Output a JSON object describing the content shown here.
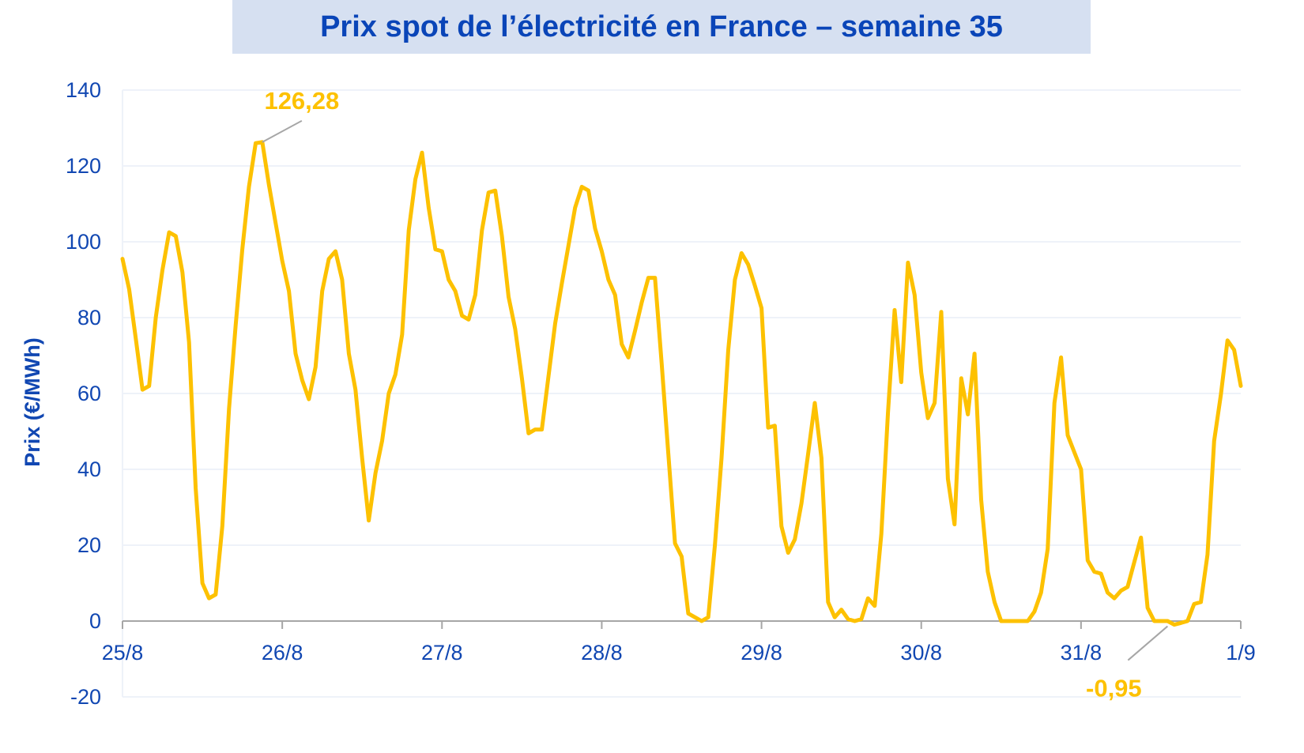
{
  "colors": {
    "title": "#0a45b8",
    "title_bg": "#d6e0f1",
    "line": "#fdc100",
    "axis_text": "#1147b2",
    "grid": "#eef2f9",
    "axis": "#a6a6a6",
    "leader": "#a6a6a6"
  },
  "chart_data": {
    "type": "line",
    "title": "Prix spot de l’électricité en France – semaine 35",
    "xlabel": "",
    "ylabel": "Prix (€/MWh)",
    "ylim": [
      -20,
      140
    ],
    "yticks": [
      -20,
      0,
      20,
      40,
      60,
      80,
      100,
      120,
      140
    ],
    "ytick_labels": [
      "-20",
      "0",
      "20",
      "40",
      "60",
      "80",
      "100",
      "120",
      "140"
    ],
    "xlim": [
      0,
      168
    ],
    "x_unit": "hours since 25/8 00:00",
    "xticks": [
      0,
      24,
      48,
      72,
      96,
      120,
      144,
      168
    ],
    "xtick_labels": [
      "25/8",
      "26/8",
      "27/8",
      "28/8",
      "29/8",
      "30/8",
      "31/8",
      "1/9"
    ],
    "grid": true,
    "series": [
      {
        "name": "Prix spot",
        "values": [
          95.5,
          87.5,
          74.5,
          61,
          62,
          80,
          92.5,
          102.5,
          101.5,
          92,
          73.5,
          35,
          10,
          6,
          7,
          25,
          56,
          78,
          98,
          114.5,
          126,
          126.28,
          115,
          105,
          95,
          87,
          70.5,
          63.5,
          58.5,
          67,
          87,
          95.5,
          97.5,
          90,
          70.5,
          61,
          43,
          26.5,
          39,
          47.5,
          60,
          65,
          75.5,
          103,
          116.5,
          123.5,
          109,
          98,
          97.5,
          90,
          87,
          80.5,
          79.5,
          86,
          103,
          113,
          113.5,
          101.5,
          85.5,
          77,
          64,
          49.5,
          50.5,
          50.5,
          64.5,
          78.5,
          89,
          99,
          109,
          114.5,
          113.5,
          103.5,
          97.5,
          90,
          86,
          73,
          69.5,
          76.5,
          84,
          90.5,
          90.5,
          68,
          44,
          20.5,
          17,
          2,
          1,
          0,
          1,
          20,
          43,
          71.5,
          90,
          97,
          94,
          88.5,
          82.5,
          51,
          51.5,
          25,
          18,
          21.5,
          31,
          44,
          57.5,
          43,
          5,
          1,
          3,
          0.5,
          0,
          0.5,
          6,
          4,
          23,
          55,
          82,
          63,
          94.5,
          86,
          65.5,
          53.5,
          57.5,
          81.5,
          37.5,
          25.5,
          64,
          54.5,
          70.5,
          32,
          13,
          5,
          0,
          0,
          0,
          0,
          0,
          2.5,
          7.5,
          19,
          57.5,
          69.5,
          49,
          44.5,
          40,
          16,
          13,
          12.5,
          7.5,
          6,
          8,
          9,
          15.5,
          22,
          3.5,
          0,
          0,
          0,
          -0.95,
          -0.5,
          0,
          4.5,
          5,
          17.5,
          47.5,
          59.5,
          74,
          71.5,
          62
        ]
      }
    ],
    "annotations": [
      {
        "text": "126,28",
        "x": 21,
        "y": 126.28
      },
      {
        "text": "-0,95",
        "x": 157,
        "y": -0.95
      }
    ]
  }
}
